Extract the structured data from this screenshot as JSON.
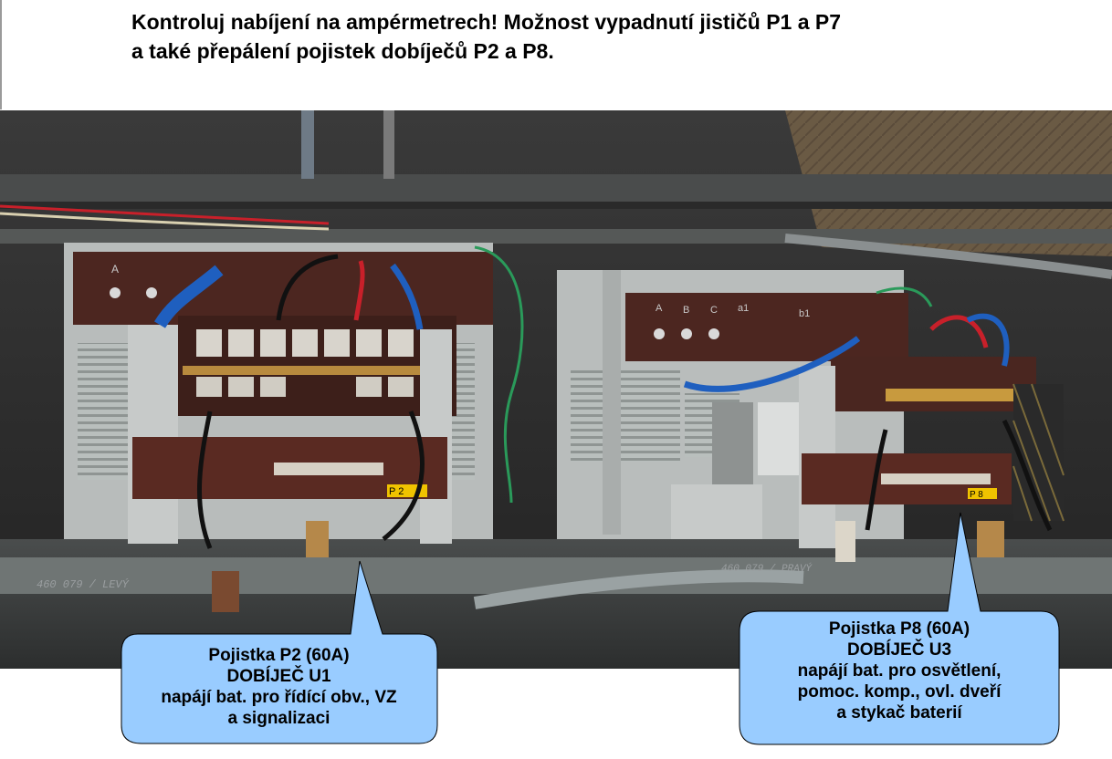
{
  "heading": {
    "line1": "Kontroluj nabíjení na ampérmetrech! Možnost vypadnutí jističů P1 a P7",
    "line2": "a také přepálení pojistek dobíječů P2 a P8."
  },
  "photo": {
    "left_panel": {
      "terminal_labels": [
        "A"
      ],
      "plate_label": "P 2",
      "frame_marking": "460 079 / LEVÝ"
    },
    "right_panel": {
      "terminal_labels": [
        "A",
        "B",
        "C",
        "a1",
        "b1"
      ],
      "plate_label": "P 8",
      "frame_marking": "460 079 / PRAVÝ"
    }
  },
  "callouts": {
    "left": {
      "line1": "Pojistka P2 (60A)",
      "line2": "DOBÍJEČ U1",
      "line3": "napájí bat. pro řídící obv., VZ",
      "line4": "a signalizaci"
    },
    "right": {
      "line1": "Pojistka P8 (60A)",
      "line2": "DOBÍJEČ U3",
      "line3": "napájí bat. pro osvětlení,",
      "line4": "pomoc. komp., ovl. dveří",
      "line5": "a stykač baterií"
    }
  },
  "colors": {
    "callout_fill": "#99ccff",
    "terminal_brown": "#5a2a22",
    "frame_gray": "#c9cccb"
  }
}
